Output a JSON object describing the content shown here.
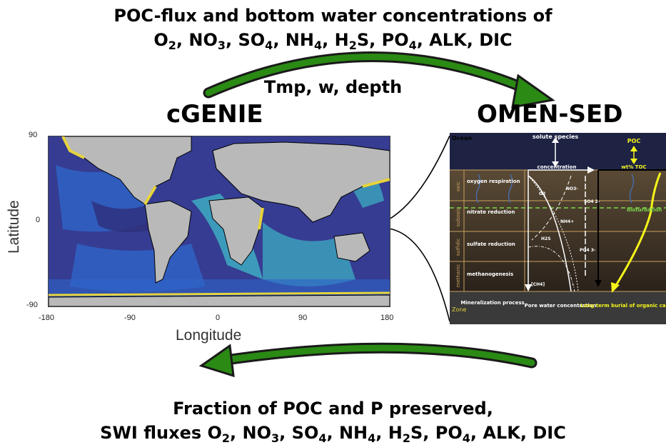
{
  "header": {
    "line1": "POC-flux and bottom water concentrations of",
    "line2_species": [
      {
        "base": "O",
        "sub": "2"
      },
      {
        "base": "NO",
        "sub": "3"
      },
      {
        "base": "SO",
        "sub": "4"
      },
      {
        "base": "NH",
        "sub": "4"
      },
      {
        "base": "H",
        "sub": "2",
        "tail": "S"
      },
      {
        "base": "PO",
        "sub": "4"
      },
      {
        "base": "ALK",
        "sub": ""
      },
      {
        "base": "DIC",
        "sub": ""
      }
    ],
    "arrow_label": "Tmp, w, depth"
  },
  "models": {
    "left": "cGENIE",
    "right": "OMEN-SED"
  },
  "map": {
    "ylabel": "Latitude",
    "xlabel": "Longitude",
    "yticks": [
      "90",
      "0",
      "-90"
    ],
    "xticks": [
      "-180",
      "-90",
      "0",
      "90",
      "180"
    ]
  },
  "omen": {
    "ocean": "Ocean",
    "solute": "solute species",
    "poc": "POC",
    "concentration": "concentration",
    "wt_toc": "wt% TOC",
    "zones": [
      "oxic",
      "suboxic",
      "sulfidic",
      "methanic"
    ],
    "processes": [
      "oxygen respiration",
      "nitrate reduction",
      "sulfate reduction",
      "methanogenesis"
    ],
    "bioturbation": "bioturbation",
    "species_labels": [
      "O2",
      "NO3-",
      "SO4 2-",
      "NH4+",
      "H2S",
      "PO4 3-",
      "[CH4]"
    ],
    "zone": "Zone",
    "mineralization": "Mineralization process",
    "porewater": "Pore water concentration",
    "burial": "Long term burial of organic carbon"
  },
  "footer": {
    "line1": "Fraction of POC and P preserved,",
    "line2_prefix": "SWI fluxes",
    "line2_species": [
      {
        "base": "O",
        "sub": "2"
      },
      {
        "base": "NO",
        "sub": "3"
      },
      {
        "base": "SO",
        "sub": "4"
      },
      {
        "base": "NH",
        "sub": "4"
      },
      {
        "base": "H",
        "sub": "2",
        "tail": "S"
      },
      {
        "base": "PO",
        "sub": "4"
      },
      {
        "base": "ALK",
        "sub": ""
      },
      {
        "base": "DIC",
        "sub": ""
      }
    ]
  },
  "colors": {
    "arrow_green": "#2a8a14",
    "arrow_dark": "#1a1a1a",
    "land": "#b9b9b9",
    "ocean_dark": "#30307a",
    "ocean_mid": "#2f64c8",
    "ocean_light": "#3fb3c6",
    "yellow": "#e6d43a",
    "sediment_top": "#5a4a35",
    "sediment_bottom": "#2a221b",
    "ocean_panel": "#1e2344",
    "poc_yellow": "#f5f51a",
    "bioturbation_green": "#7bd64a"
  }
}
